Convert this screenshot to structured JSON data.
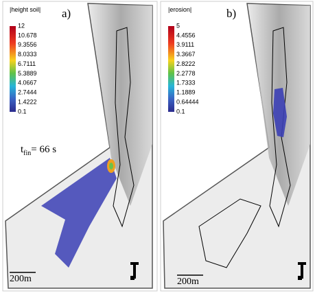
{
  "panels": [
    {
      "label": "a)",
      "colorbar": {
        "title": "|height soil|",
        "ticks": [
          "12",
          "10.678",
          "9.3556",
          "8.0333",
          "6.7111",
          "5.3889",
          "4.0667",
          "2.7444",
          "1.4222",
          "0.1"
        ]
      },
      "annotation": {
        "symbol": "t",
        "subscript": "fin",
        "text": "= 66 s"
      },
      "scale": "200m"
    },
    {
      "label": "b)",
      "colorbar": {
        "title": "|erosion|",
        "ticks": [
          "5",
          "4.4556",
          "3.9111",
          "3.3667",
          "2.8222",
          "2.2778",
          "1.7333",
          "1.1889",
          "0.64444",
          "0.1"
        ]
      },
      "scale": "200m"
    }
  ]
}
